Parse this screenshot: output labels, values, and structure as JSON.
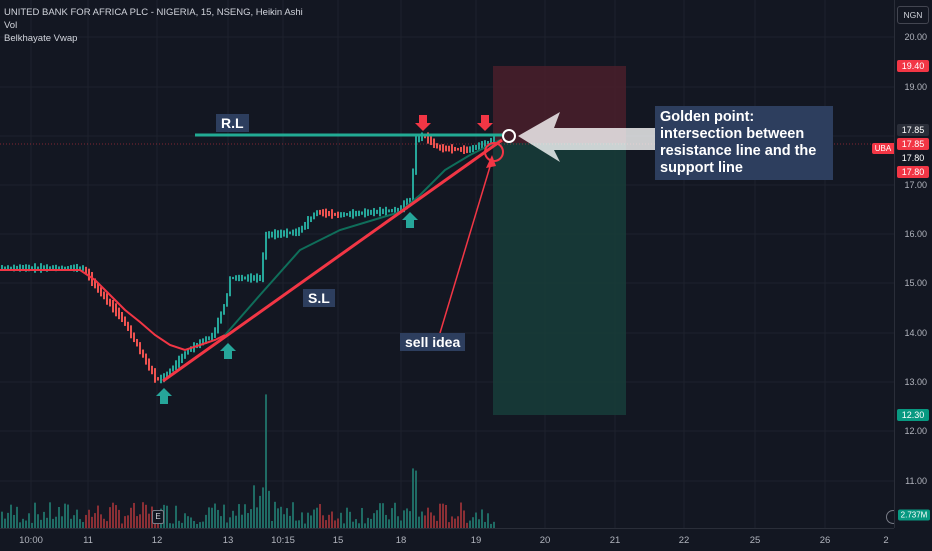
{
  "legend": {
    "line1": "UNITED BANK FOR AFRICA PLC - NIGERIA, 15, NSENG, Heikin Ashi",
    "line2": "Vol",
    "line3": "Belkhayate Vwap"
  },
  "currency": "NGN",
  "price_axis": {
    "labels": [
      "20.00",
      "19.00",
      "17.00",
      "16.00",
      "15.00",
      "14.00",
      "13.00",
      "12.00",
      "11.00"
    ],
    "tags": [
      {
        "text": "19.40",
        "color": "#f23645"
      },
      {
        "text": "17.85",
        "color": "#2a2e39"
      },
      {
        "text": "17.85",
        "color": "#f23645"
      },
      {
        "text": "17.80",
        "color": "#131722"
      },
      {
        "text": "17.80",
        "color": "#f23645"
      },
      {
        "text": "12.30",
        "color": "#089981"
      },
      {
        "text": "2.737M",
        "color": "#089981"
      }
    ],
    "symbol_tag": "UBA"
  },
  "time_axis": [
    "10:00",
    "11",
    "12",
    "13",
    "10:15",
    "15",
    "18",
    "19",
    "20",
    "21",
    "22",
    "25",
    "26",
    "2"
  ],
  "annotations": {
    "rl": "R.L",
    "sl": "S.L",
    "sell": "sell idea",
    "golden_1": "Golden point:",
    "golden_2": "intersection between",
    "golden_3": "resistance line and the",
    "golden_4": "support line"
  },
  "event_badge": "E",
  "colors": {
    "up": "#26a69a",
    "down": "#ef5350",
    "vwap": "#f23645",
    "background": "#131722"
  }
}
